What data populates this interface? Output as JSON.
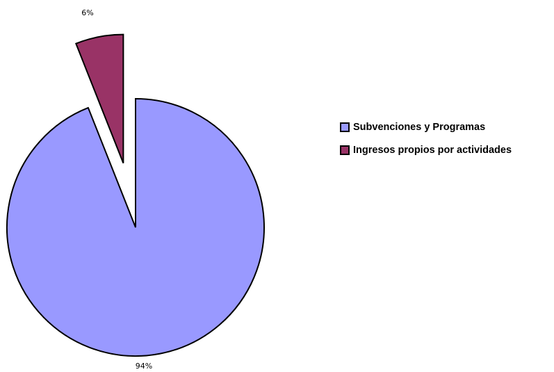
{
  "chart_data": {
    "type": "pie",
    "title": "",
    "categories": [
      "Subvenciones y Programas",
      "Ingresos propios por actividades"
    ],
    "values": [
      94,
      6
    ],
    "data_labels": [
      "94%",
      "6%"
    ],
    "colors": [
      "#9999FF",
      "#993366"
    ],
    "exploded": [
      false,
      true
    ],
    "legend_position": "right"
  }
}
